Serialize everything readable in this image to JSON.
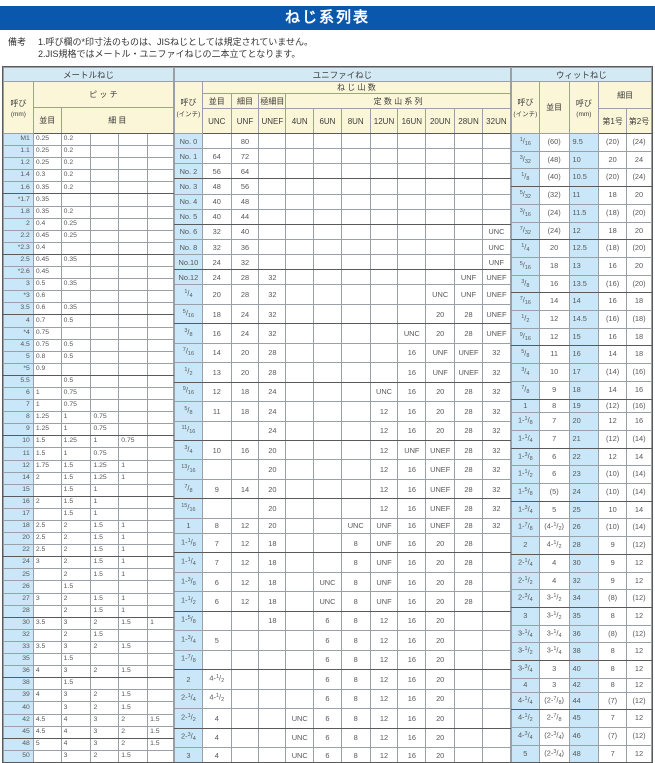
{
  "title": "ねじ系列表",
  "notes": {
    "label": "備考",
    "lines": [
      "1.呼び欄の*印寸法のものは、JISねじとしては規定されていません。",
      "2.JIS規格ではメートル・ユニファイねじの二本立てとなります。"
    ]
  },
  "colors": {
    "title_bar_bg": "#0a57ae",
    "section_header_bg": "#d3eaf5",
    "subheader_bg": "#fbf6d8",
    "caller_column_bg": "#c9e7f8",
    "band_border": "#5a5a5a",
    "grid_border": "#9aa0a6",
    "data_text": "#585858"
  },
  "metric": {
    "section_title": "メートルねじ",
    "headers": {
      "caller": "呼び",
      "caller_unit": "(mm)",
      "pitch": "ピ ッ チ",
      "coarse": "並目",
      "fine": "細 目"
    },
    "band_size": 5,
    "rows": [
      [
        "M1",
        "0.25",
        "0.2",
        "",
        "",
        ""
      ],
      [
        "1.1",
        "0.25",
        "0.2",
        "",
        "",
        ""
      ],
      [
        "1.2",
        "0.25",
        "0.2",
        "",
        "",
        ""
      ],
      [
        "1.4",
        "0.3",
        "0.2",
        "",
        "",
        ""
      ],
      [
        "1.6",
        "0.35",
        "0.2",
        "",
        "",
        ""
      ],
      [
        "*1.7",
        "0.35",
        "",
        "",
        "",
        ""
      ],
      [
        "1.8",
        "0.35",
        "0.2",
        "",
        "",
        ""
      ],
      [
        "2",
        "0.4",
        "0.25",
        "",
        "",
        ""
      ],
      [
        "2.2",
        "0.45",
        "0.25",
        "",
        "",
        ""
      ],
      [
        "*2.3",
        "0.4",
        "",
        "",
        "",
        ""
      ],
      [
        "2.5",
        "0.45",
        "0.35",
        "",
        "",
        ""
      ],
      [
        "*2.6",
        "0.45",
        "",
        "",
        "",
        ""
      ],
      [
        "3",
        "0.5",
        "0.35",
        "",
        "",
        ""
      ],
      [
        "*3",
        "0.6",
        "",
        "",
        "",
        ""
      ],
      [
        "3.5",
        "0.6",
        "0.35",
        "",
        "",
        ""
      ],
      [
        "4",
        "0.7",
        "0.5",
        "",
        "",
        ""
      ],
      [
        "*4",
        "0.75",
        "",
        "",
        "",
        ""
      ],
      [
        "4.5",
        "0.75",
        "0.5",
        "",
        "",
        ""
      ],
      [
        "5",
        "0.8",
        "0.5",
        "",
        "",
        ""
      ],
      [
        "*5",
        "0.9",
        "",
        "",
        "",
        ""
      ],
      [
        "5.5",
        "",
        "0.5",
        "",
        "",
        ""
      ],
      [
        "6",
        "1",
        "0.75",
        "",
        "",
        ""
      ],
      [
        "7",
        "1",
        "0.75",
        "",
        "",
        ""
      ],
      [
        "8",
        "1.25",
        "1",
        "0.75",
        "",
        ""
      ],
      [
        "9",
        "1.25",
        "1",
        "0.75",
        "",
        ""
      ],
      [
        "10",
        "1.5",
        "1.25",
        "1",
        "0.75",
        ""
      ],
      [
        "11",
        "1.5",
        "1",
        "0.75",
        "",
        ""
      ],
      [
        "12",
        "1.75",
        "1.5",
        "1.25",
        "1",
        ""
      ],
      [
        "14",
        "2",
        "1.5",
        "1.25",
        "1",
        ""
      ],
      [
        "15",
        "",
        "1.5",
        "1",
        "",
        ""
      ],
      [
        "16",
        "2",
        "1.5",
        "1",
        "",
        ""
      ],
      [
        "17",
        "",
        "1.5",
        "1",
        "",
        ""
      ],
      [
        "18",
        "2.5",
        "2",
        "1.5",
        "1",
        ""
      ],
      [
        "20",
        "2.5",
        "2",
        "1.5",
        "1",
        ""
      ],
      [
        "22",
        "2.5",
        "2",
        "1.5",
        "1",
        ""
      ],
      [
        "24",
        "3",
        "2",
        "1.5",
        "1",
        ""
      ],
      [
        "25",
        "",
        "2",
        "1.5",
        "1",
        ""
      ],
      [
        "26",
        "",
        "1.5",
        "",
        "",
        ""
      ],
      [
        "27",
        "3",
        "2",
        "1.5",
        "1",
        ""
      ],
      [
        "28",
        "",
        "2",
        "1.5",
        "1",
        ""
      ],
      [
        "30",
        "3.5",
        "3",
        "2",
        "1.5",
        "1"
      ],
      [
        "32",
        "",
        "2",
        "1.5",
        "",
        ""
      ],
      [
        "33",
        "3.5",
        "3",
        "2",
        "1.5",
        ""
      ],
      [
        "35",
        "",
        "1.5",
        "",
        "",
        ""
      ],
      [
        "36",
        "4",
        "3",
        "2",
        "1.5",
        ""
      ],
      [
        "38",
        "",
        "1.5",
        "",
        "",
        ""
      ],
      [
        "39",
        "4",
        "3",
        "2",
        "1.5",
        ""
      ],
      [
        "40",
        "",
        "3",
        "2",
        "1.5",
        ""
      ],
      [
        "42",
        "4.5",
        "4",
        "3",
        "2",
        "1.5"
      ],
      [
        "45",
        "4.5",
        "4",
        "3",
        "2",
        "1.5"
      ],
      [
        "48",
        "5",
        "4",
        "3",
        "2",
        "1.5"
      ],
      [
        "50",
        "",
        "3",
        "2",
        "1.5",
        ""
      ]
    ]
  },
  "unified": {
    "section_title": "ユニファイねじ",
    "headers": {
      "caller": "呼び",
      "caller_unit": "(インチ)",
      "thread_count": "ね じ 山 数",
      "coarse": "並目",
      "fine": "細目",
      "extra_fine": "極細目",
      "constant_series": "定 数 山 系 列",
      "symbols": [
        "UNC",
        "UNF",
        "UNEF"
      ],
      "un_cols": [
        "4UN",
        "6UN",
        "8UN",
        "12UN",
        "16UN",
        "20UN",
        "28UN",
        "32UN"
      ]
    },
    "band_size": 3,
    "rows": [
      [
        "No. 0",
        "",
        "80",
        "",
        "",
        "",
        "",
        "",
        "",
        "",
        "",
        ""
      ],
      [
        "No. 1",
        "64",
        "72",
        "",
        "",
        "",
        "",
        "",
        "",
        "",
        "",
        ""
      ],
      [
        "No. 2",
        "56",
        "64",
        "",
        "",
        "",
        "",
        "",
        "",
        "",
        "",
        ""
      ],
      [
        "No. 3",
        "48",
        "56",
        "",
        "",
        "",
        "",
        "",
        "",
        "",
        "",
        ""
      ],
      [
        "No. 4",
        "40",
        "48",
        "",
        "",
        "",
        "",
        "",
        "",
        "",
        "",
        ""
      ],
      [
        "No. 5",
        "40",
        "44",
        "",
        "",
        "",
        "",
        "",
        "",
        "",
        "",
        ""
      ],
      [
        "No. 6",
        "32",
        "40",
        "",
        "",
        "",
        "",
        "",
        "",
        "",
        "",
        "UNC"
      ],
      [
        "No. 8",
        "32",
        "36",
        "",
        "",
        "",
        "",
        "",
        "",
        "",
        "",
        "UNC"
      ],
      [
        "No.10",
        "24",
        "32",
        "",
        "",
        "",
        "",
        "",
        "",
        "",
        "",
        "UNF"
      ],
      [
        "No.12",
        "24",
        "28",
        "32",
        "",
        "",
        "",
        "",
        "",
        "",
        "UNF",
        "UNEF"
      ],
      [
        "1/4",
        "20",
        "28",
        "32",
        "",
        "",
        "",
        "",
        "",
        "UNC",
        "UNF",
        "UNEF"
      ],
      [
        "5/16",
        "18",
        "24",
        "32",
        "",
        "",
        "",
        "",
        "",
        "20",
        "28",
        "UNEF"
      ],
      [
        "3/8",
        "16",
        "24",
        "32",
        "",
        "",
        "",
        "",
        "UNC",
        "20",
        "28",
        "UNEF"
      ],
      [
        "7/16",
        "14",
        "20",
        "28",
        "",
        "",
        "",
        "",
        "16",
        "UNF",
        "UNEF",
        "32"
      ],
      [
        "1/2",
        "13",
        "20",
        "28",
        "",
        "",
        "",
        "",
        "16",
        "UNF",
        "UNEF",
        "32"
      ],
      [
        "9/16",
        "12",
        "18",
        "24",
        "",
        "",
        "",
        "UNC",
        "16",
        "20",
        "28",
        "32"
      ],
      [
        "5/8",
        "11",
        "18",
        "24",
        "",
        "",
        "",
        "12",
        "16",
        "20",
        "28",
        "32"
      ],
      [
        "11/16",
        "",
        "",
        "24",
        "",
        "",
        "",
        "12",
        "16",
        "20",
        "28",
        "32"
      ],
      [
        "3/4",
        "10",
        "16",
        "20",
        "",
        "",
        "",
        "12",
        "UNF",
        "UNEF",
        "28",
        "32"
      ],
      [
        "13/16",
        "",
        "",
        "20",
        "",
        "",
        "",
        "12",
        "16",
        "UNEF",
        "28",
        "32"
      ],
      [
        "7/8",
        "9",
        "14",
        "20",
        "",
        "",
        "",
        "12",
        "16",
        "UNEF",
        "28",
        "32"
      ],
      [
        "15/16",
        "",
        "",
        "20",
        "",
        "",
        "",
        "12",
        "16",
        "UNEF",
        "28",
        "32"
      ],
      [
        "1",
        "8",
        "12",
        "20",
        "",
        "",
        "UNC",
        "UNF",
        "16",
        "UNEF",
        "28",
        "32"
      ],
      [
        "1-1/8",
        "7",
        "12",
        "18",
        "",
        "",
        "8",
        "UNF",
        "16",
        "20",
        "28",
        ""
      ],
      [
        "1-1/4",
        "7",
        "12",
        "18",
        "",
        "",
        "8",
        "UNF",
        "16",
        "20",
        "28",
        ""
      ],
      [
        "1-3/8",
        "6",
        "12",
        "18",
        "",
        "UNC",
        "8",
        "UNF",
        "16",
        "20",
        "28",
        ""
      ],
      [
        "1-1/2",
        "6",
        "12",
        "18",
        "",
        "UNC",
        "8",
        "UNF",
        "16",
        "20",
        "28",
        ""
      ],
      [
        "1-5/8",
        "",
        "",
        "18",
        "",
        "6",
        "8",
        "12",
        "16",
        "20",
        "",
        ""
      ],
      [
        "1-3/4",
        "5",
        "",
        "",
        "",
        "6",
        "8",
        "12",
        "16",
        "20",
        "",
        ""
      ],
      [
        "1-7/8",
        "",
        "",
        "",
        "",
        "6",
        "8",
        "12",
        "16",
        "20",
        "",
        ""
      ],
      [
        "2",
        "4-1/2",
        "",
        "",
        "",
        "6",
        "8",
        "12",
        "16",
        "20",
        "",
        ""
      ],
      [
        "2-1/4",
        "4-1/2",
        "",
        "",
        "",
        "6",
        "8",
        "12",
        "16",
        "20",
        "",
        ""
      ],
      [
        "2-1/2",
        "4",
        "",
        "",
        "UNC",
        "6",
        "8",
        "12",
        "16",
        "20",
        "",
        ""
      ],
      [
        "2-3/4",
        "4",
        "",
        "",
        "UNC",
        "6",
        "8",
        "12",
        "16",
        "20",
        "",
        ""
      ],
      [
        "3",
        "4",
        "",
        "",
        "UNC",
        "6",
        "8",
        "12",
        "16",
        "20",
        "",
        ""
      ]
    ]
  },
  "whitworth": {
    "section_title": "ウィットねじ",
    "headers": {
      "caller_inch": "呼び",
      "caller_inch_unit": "(インチ)",
      "coarse": "並目",
      "caller_mm": "呼び",
      "caller_mm_unit": "(mm)",
      "fine": "細目",
      "fine_no1": "第1号",
      "fine_no2": "第2号"
    },
    "band_size": 3,
    "rows": [
      [
        "1/16",
        "(60)",
        "9.5",
        "(20)",
        "(24)"
      ],
      [
        "3/32",
        "(48)",
        "10",
        "20",
        "24"
      ],
      [
        "1/8",
        "(40)",
        "10.5",
        "(20)",
        "(24)"
      ],
      [
        "5/32",
        "(32)",
        "11",
        "18",
        "20"
      ],
      [
        "3/16",
        "(24)",
        "11.5",
        "(18)",
        "(20)"
      ],
      [
        "7/32",
        "(24)",
        "12",
        "18",
        "20"
      ],
      [
        "1/4",
        "20",
        "12.5",
        "(18)",
        "(20)"
      ],
      [
        "5/16",
        "18",
        "13",
        "16",
        "20"
      ],
      [
        "3/8",
        "16",
        "13.5",
        "(16)",
        "(20)"
      ],
      [
        "7/16",
        "14",
        "14",
        "16",
        "18"
      ],
      [
        "1/2",
        "12",
        "14.5",
        "(16)",
        "(18)"
      ],
      [
        "9/16",
        "12",
        "15",
        "16",
        "18"
      ],
      [
        "5/8",
        "11",
        "16",
        "14",
        "18"
      ],
      [
        "3/4",
        "10",
        "17",
        "(14)",
        "(16)"
      ],
      [
        "7/8",
        "9",
        "18",
        "14",
        "16"
      ],
      [
        "1",
        "8",
        "19",
        "(12)",
        "(16)"
      ],
      [
        "1-1/8",
        "7",
        "20",
        "12",
        "16"
      ],
      [
        "1-1/4",
        "7",
        "21",
        "(12)",
        "(14)"
      ],
      [
        "1-3/8",
        "6",
        "22",
        "12",
        "14"
      ],
      [
        "1-1/2",
        "6",
        "23",
        "(10)",
        "(14)"
      ],
      [
        "1-5/8",
        "(5)",
        "24",
        "(10)",
        "(14)"
      ],
      [
        "1-3/4",
        "5",
        "25",
        "10",
        "14"
      ],
      [
        "1-7/8",
        "(4-1/2)",
        "26",
        "(10)",
        "(14)"
      ],
      [
        "2",
        "4-1/2",
        "28",
        "9",
        "(12)"
      ],
      [
        "2-1/4",
        "4",
        "30",
        "9",
        "12"
      ],
      [
        "2-1/2",
        "4",
        "32",
        "9",
        "12"
      ],
      [
        "2-3/4",
        "3-1/2",
        "34",
        "(8)",
        "(12)"
      ],
      [
        "3",
        "3-1/2",
        "35",
        "8",
        "12"
      ],
      [
        "3-1/4",
        "3-1/4",
        "36",
        "(8)",
        "(12)"
      ],
      [
        "3-1/2",
        "3-1/4",
        "38",
        "8",
        "12"
      ],
      [
        "3-3/4",
        "3",
        "40",
        "8",
        "12"
      ],
      [
        "4",
        "3",
        "42",
        "8",
        "12"
      ],
      [
        "4-1/4",
        "(2-7/8)",
        "44",
        "(7)",
        "(12)"
      ],
      [
        "4-1/2",
        "2-7/8",
        "45",
        "7",
        "12"
      ],
      [
        "4-3/4",
        "(2-3/4)",
        "46",
        "(7)",
        "(12)"
      ],
      [
        "5",
        "(2-3/4)",
        "48",
        "7",
        "12"
      ]
    ]
  }
}
